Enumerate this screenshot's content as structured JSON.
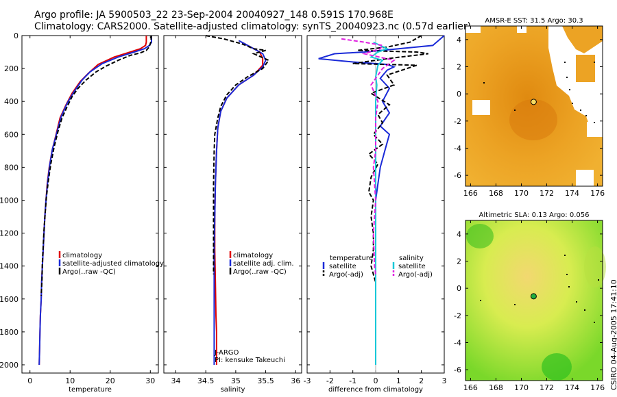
{
  "title_line1": "Argo profile: JA 5900503_22 23-Sep-2004 20040927_148 0.591S 170.968E",
  "title_line2": "Climatology: CARS2000. Satellite-adjusted climatology: synTS_20040923.nc (0.57d earlier)",
  "stamp": "CSIRO 04-Aug-2005 17:41:10",
  "colors": {
    "climatology": "#e00000",
    "satellite": "#1a2ad8",
    "argo": "#000000",
    "satellite_salt": "#18c8d8",
    "argo_salt": "#e020e0"
  },
  "chart_data": [
    {
      "id": "temperature",
      "type": "line",
      "xlabel": "temperature",
      "xlim": [
        -2,
        32
      ],
      "ylim": [
        2050,
        0
      ],
      "xticks": [
        0,
        10,
        20,
        30
      ],
      "yticks": [
        0,
        200,
        400,
        600,
        800,
        1000,
        1200,
        1400,
        1600,
        1800,
        2000
      ],
      "legend": [
        "climatology",
        "satellite-adjusted climatology",
        "Argo(..raw -QC)"
      ],
      "series": [
        {
          "name": "climatology",
          "color": "climatology",
          "dash": false,
          "pts": [
            [
              29,
              0
            ],
            [
              29,
              40
            ],
            [
              28.8,
              60
            ],
            [
              27.5,
              80
            ],
            [
              25,
              100
            ],
            [
              21,
              130
            ],
            [
              17,
              175
            ],
            [
              14.5,
              230
            ],
            [
              12.5,
              280
            ],
            [
              10.5,
              350
            ],
            [
              9,
              420
            ],
            [
              7.5,
              500
            ],
            [
              6.5,
              600
            ],
            [
              5.5,
              700
            ],
            [
              4.8,
              800
            ],
            [
              4.3,
              900
            ],
            [
              4,
              1000
            ],
            [
              3.7,
              1100
            ],
            [
              3.5,
              1200
            ],
            [
              3.3,
              1300
            ],
            [
              3.1,
              1400
            ],
            [
              2.9,
              1500
            ],
            [
              2.8,
              1600
            ],
            [
              2.6,
              1700
            ],
            [
              2.5,
              1800
            ],
            [
              2.4,
              1900
            ],
            [
              2.3,
              2000
            ]
          ]
        },
        {
          "name": "satellite-adjusted climatology",
          "color": "satellite",
          "dash": false,
          "pts": [
            [
              30.3,
              0
            ],
            [
              30.3,
              40
            ],
            [
              29.8,
              60
            ],
            [
              28.5,
              80
            ],
            [
              26,
              100
            ],
            [
              22,
              130
            ],
            [
              18,
              170
            ],
            [
              15,
              220
            ],
            [
              13,
              270
            ],
            [
              11,
              340
            ],
            [
              9.3,
              410
            ],
            [
              7.8,
              490
            ],
            [
              6.7,
              590
            ],
            [
              5.6,
              690
            ],
            [
              4.9,
              790
            ],
            [
              4.4,
              890
            ],
            [
              4,
              1000
            ],
            [
              3.7,
              1100
            ],
            [
              3.5,
              1200
            ],
            [
              3.3,
              1300
            ],
            [
              3.1,
              1400
            ],
            [
              2.9,
              1500
            ],
            [
              2.8,
              1600
            ],
            [
              2.6,
              1700
            ],
            [
              2.5,
              1800
            ],
            [
              2.4,
              1900
            ],
            [
              2.3,
              2000
            ]
          ]
        },
        {
          "name": "Argo(..raw -QC)",
          "color": "argo",
          "dash": true,
          "pts": [
            [
              30.3,
              0
            ],
            [
              30.1,
              40
            ],
            [
              29.7,
              70
            ],
            [
              29,
              90
            ],
            [
              27.5,
              105
            ],
            [
              25,
              120
            ],
            [
              22,
              150
            ],
            [
              19,
              185
            ],
            [
              16.5,
              220
            ],
            [
              14,
              270
            ],
            [
              12,
              320
            ],
            [
              10.5,
              370
            ],
            [
              9.3,
              430
            ],
            [
              8,
              500
            ],
            [
              7,
              580
            ],
            [
              6,
              680
            ],
            [
              5.2,
              780
            ],
            [
              4.6,
              880
            ],
            [
              4.1,
              980
            ],
            [
              3.8,
              1080
            ],
            [
              3.5,
              1180
            ],
            [
              3.3,
              1280
            ],
            [
              3.1,
              1380
            ],
            [
              3,
              1480
            ],
            [
              2.8,
              1580
            ]
          ]
        }
      ]
    },
    {
      "id": "salinity",
      "type": "line",
      "xlabel": "salinity",
      "xlim": [
        33.8,
        36.1
      ],
      "ylim": [
        2050,
        0
      ],
      "xticks": [
        34,
        34.5,
        35,
        35.5,
        36
      ],
      "yticks": [
        0,
        200,
        400,
        600,
        800,
        1000,
        1200,
        1400,
        1600,
        1800,
        2000
      ],
      "legend": [
        "climatology",
        "satellite adj. clim.",
        "Argo(..raw -QC)"
      ],
      "annotation": [
        "J-ARGO",
        "PI: kensuke Takeuchi"
      ],
      "series": [
        {
          "name": "climatology",
          "color": "climatology",
          "dash": false,
          "pts": [
            [
              35.1,
              40
            ],
            [
              35.25,
              70
            ],
            [
              35.4,
              100
            ],
            [
              35.45,
              140
            ],
            [
              35.45,
              180
            ],
            [
              35.3,
              240
            ],
            [
              35.05,
              300
            ],
            [
              34.85,
              380
            ],
            [
              34.75,
              460
            ],
            [
              34.7,
              560
            ],
            [
              34.68,
              700
            ],
            [
              34.66,
              900
            ],
            [
              34.65,
              1100
            ],
            [
              34.65,
              1300
            ],
            [
              34.66,
              1500
            ],
            [
              34.67,
              1700
            ],
            [
              34.68,
              1800
            ],
            [
              34.68,
              1900
            ],
            [
              34.68,
              2000
            ]
          ]
        },
        {
          "name": "satellite adj. clim.",
          "color": "satellite",
          "dash": false,
          "pts": [
            [
              35.05,
              30
            ],
            [
              35.25,
              70
            ],
            [
              35.45,
              110
            ],
            [
              35.5,
              150
            ],
            [
              35.45,
              190
            ],
            [
              35.3,
              240
            ],
            [
              35.05,
              300
            ],
            [
              34.85,
              380
            ],
            [
              34.75,
              460
            ],
            [
              34.7,
              560
            ],
            [
              34.68,
              700
            ],
            [
              34.66,
              900
            ],
            [
              34.65,
              1100
            ],
            [
              34.64,
              1300
            ],
            [
              34.64,
              1500
            ],
            [
              34.64,
              1700
            ],
            [
              34.64,
              1850
            ],
            [
              34.64,
              2000
            ]
          ]
        },
        {
          "name": "Argo(..raw -QC)",
          "color": "argo",
          "dash": true,
          "pts": [
            [
              34.5,
              0
            ],
            [
              34.8,
              20
            ],
            [
              35.1,
              50
            ],
            [
              35.3,
              80
            ],
            [
              35.5,
              90
            ],
            [
              35.3,
              110
            ],
            [
              35.55,
              150
            ],
            [
              35.45,
              200
            ],
            [
              35.2,
              250
            ],
            [
              35,
              300
            ],
            [
              34.85,
              360
            ],
            [
              34.75,
              430
            ],
            [
              34.7,
              500
            ],
            [
              34.65,
              600
            ],
            [
              34.64,
              700
            ],
            [
              34.63,
              900
            ],
            [
              34.63,
              1100
            ],
            [
              34.63,
              1300
            ],
            [
              34.63,
              1450
            ]
          ]
        }
      ]
    },
    {
      "id": "difference",
      "type": "line",
      "xlabel": "difference from climatology",
      "xlim": [
        -3,
        3
      ],
      "ylim": [
        2050,
        0
      ],
      "xticks": [
        -3,
        -2,
        -1,
        0,
        1,
        2,
        3
      ],
      "yticks": [
        0,
        200,
        400,
        600,
        800,
        1000,
        1200,
        1400,
        1600,
        1800,
        2000
      ],
      "legend_left": {
        "title": "temperature",
        "items": [
          "satellite",
          "Argo(-adj)"
        ]
      },
      "legend_right": {
        "title": "salinity",
        "items": [
          "satellite",
          "Argo(-adj)"
        ]
      },
      "series": [
        {
          "name": "temperature satellite",
          "color": "satellite",
          "dash": false,
          "pts": [
            [
              3,
              0
            ],
            [
              2.5,
              60
            ],
            [
              1,
              80
            ],
            [
              -0.5,
              100
            ],
            [
              -1.8,
              110
            ],
            [
              -2.5,
              140
            ],
            [
              -1,
              160
            ],
            [
              0.5,
              175
            ],
            [
              0.8,
              190
            ],
            [
              0.5,
              210
            ],
            [
              0.2,
              260
            ],
            [
              0.6,
              320
            ],
            [
              0.3,
              400
            ],
            [
              0.6,
              470
            ],
            [
              0.2,
              550
            ],
            [
              0.6,
              600
            ],
            [
              0.4,
              700
            ],
            [
              0.2,
              800
            ],
            [
              0.1,
              900
            ],
            [
              0,
              1000
            ],
            [
              0,
              1200
            ],
            [
              0,
              1400
            ],
            [
              0,
              1600
            ],
            [
              0,
              1800
            ],
            [
              0,
              2000
            ]
          ]
        },
        {
          "name": "temperature Argo(-adj)",
          "color": "argo",
          "dash": true,
          "pts": [
            [
              2,
              0
            ],
            [
              1.5,
              40
            ],
            [
              0.5,
              70
            ],
            [
              -0.8,
              90
            ],
            [
              1.8,
              100
            ],
            [
              2.3,
              110
            ],
            [
              0.5,
              140
            ],
            [
              -1,
              170
            ],
            [
              1.8,
              180
            ],
            [
              0.5,
              240
            ],
            [
              0.8,
              300
            ],
            [
              -0.2,
              350
            ],
            [
              0.6,
              420
            ],
            [
              0.1,
              480
            ],
            [
              0.3,
              530
            ],
            [
              -0.1,
              600
            ],
            [
              0.3,
              660
            ],
            [
              -0.3,
              720
            ],
            [
              0.1,
              780
            ],
            [
              -0.2,
              860
            ],
            [
              -0.3,
              950
            ],
            [
              -0.1,
              1000
            ],
            [
              -0.2,
              1100
            ],
            [
              -0.1,
              1200
            ],
            [
              -0.1,
              1300
            ],
            [
              -0.2,
              1400
            ],
            [
              0,
              1500
            ],
            [
              0,
              1580
            ]
          ]
        },
        {
          "name": "salinity satellite",
          "color": "satellite_salt",
          "dash": false,
          "pts": [
            [
              -0.1,
              40
            ],
            [
              0.2,
              60
            ],
            [
              0.5,
              80
            ],
            [
              0.1,
              100
            ],
            [
              -0.2,
              130
            ],
            [
              0.3,
              150
            ],
            [
              0.1,
              180
            ],
            [
              0,
              250
            ],
            [
              0.05,
              300
            ],
            [
              0,
              400
            ],
            [
              0,
              600
            ],
            [
              0,
              800
            ],
            [
              0,
              1000
            ],
            [
              0,
              1200
            ],
            [
              0,
              1400
            ],
            [
              0,
              1600
            ],
            [
              0,
              1800
            ],
            [
              0,
              2000
            ]
          ]
        },
        {
          "name": "salinity Argo(-adj)",
          "color": "argo_salt",
          "dash": true,
          "pts": [
            [
              -1.5,
              20
            ],
            [
              -0.5,
              40
            ],
            [
              0.3,
              60
            ],
            [
              0.2,
              80
            ],
            [
              -0.5,
              110
            ],
            [
              0.8,
              150
            ],
            [
              0.3,
              200
            ],
            [
              -0.2,
              300
            ],
            [
              0.1,
              400
            ],
            [
              0,
              500
            ],
            [
              0,
              700
            ],
            [
              -0.1,
              800
            ],
            [
              0,
              1000
            ],
            [
              -0.1,
              1200
            ],
            [
              -0.05,
              1400
            ],
            [
              0,
              1450
            ]
          ]
        }
      ]
    },
    {
      "id": "sst_map",
      "type": "heatmap",
      "title": "AMSR-E SST: 31.5 Argo: 30.3",
      "xlim": [
        165.6,
        176.4
      ],
      "ylim": [
        -6.8,
        5
      ],
      "xticks": [
        166,
        168,
        170,
        172,
        174,
        176
      ],
      "yticks": [
        -6,
        -4,
        -2,
        0,
        2,
        4
      ],
      "argo_point": [
        170.968,
        -0.591
      ]
    },
    {
      "id": "sla_map",
      "type": "heatmap",
      "title": "Altimetric SLA: 0.13 Argo: 0.056",
      "xlim": [
        165.6,
        176.4
      ],
      "ylim": [
        -6.8,
        5
      ],
      "xticks": [
        166,
        168,
        170,
        172,
        174,
        176
      ],
      "yticks": [
        -6,
        -4,
        -2,
        0,
        2,
        4
      ],
      "argo_point": [
        170.968,
        -0.591
      ]
    }
  ]
}
